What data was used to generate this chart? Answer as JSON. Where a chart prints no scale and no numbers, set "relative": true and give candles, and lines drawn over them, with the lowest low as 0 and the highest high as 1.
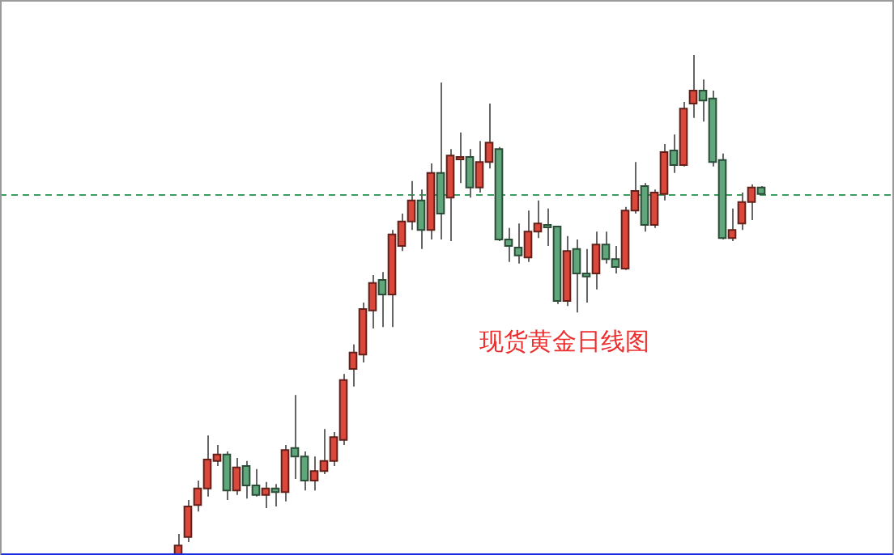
{
  "chart_data": {
    "type": "candlestick",
    "title": "现货黄金日线图",
    "relative": true,
    "categories": [
      null,
      null,
      null,
      null,
      null,
      null,
      null,
      null,
      null,
      null,
      null,
      null,
      null,
      null,
      null,
      null,
      null,
      null,
      null,
      null,
      null,
      null,
      null,
      null,
      null,
      null,
      null,
      null,
      null,
      null,
      null,
      null,
      null,
      null,
      null,
      null,
      null,
      null,
      null,
      null,
      null,
      null,
      null,
      null,
      null,
      null,
      null,
      null,
      null,
      null,
      null,
      null,
      null,
      null,
      null,
      null,
      null,
      null,
      null,
      null,
      null
    ],
    "ohlc": [
      [
        0,
        0.042,
        0,
        0.019
      ],
      [
        0.036,
        0.11,
        0.026,
        0.097
      ],
      [
        0.1,
        0.149,
        0.087,
        0.133
      ],
      [
        0.133,
        0.239,
        0.117,
        0.191
      ],
      [
        0.188,
        0.22,
        0.178,
        0.201
      ],
      [
        0.201,
        0.207,
        0.11,
        0.129
      ],
      [
        0.129,
        0.194,
        0.12,
        0.175
      ],
      [
        0.178,
        0.188,
        0.113,
        0.139
      ],
      [
        0.139,
        0.172,
        0.117,
        0.12
      ],
      [
        0.12,
        0.146,
        0.094,
        0.133
      ],
      [
        0.133,
        0.142,
        0.097,
        0.126
      ],
      [
        0.126,
        0.22,
        0.107,
        0.21
      ],
      [
        0.214,
        0.32,
        0.152,
        0.197
      ],
      [
        0.197,
        0.207,
        0.129,
        0.149
      ],
      [
        0.149,
        0.197,
        0.129,
        0.168
      ],
      [
        0.168,
        0.252,
        0.162,
        0.188
      ],
      [
        0.188,
        0.246,
        0.178,
        0.236
      ],
      [
        0.23,
        0.362,
        0.22,
        0.35
      ],
      [
        0.372,
        0.421,
        0.337,
        0.405
      ],
      [
        0.401,
        0.505,
        0.385,
        0.492
      ],
      [
        0.489,
        0.56,
        0.453,
        0.544
      ],
      [
        0.55,
        0.566,
        0.456,
        0.521
      ],
      [
        0.521,
        0.65,
        0.456,
        0.641
      ],
      [
        0.618,
        0.683,
        0.608,
        0.667
      ],
      [
        0.667,
        0.748,
        0.65,
        0.709
      ],
      [
        0.709,
        0.731,
        0.612,
        0.65
      ],
      [
        0.65,
        0.783,
        0.631,
        0.764
      ],
      [
        0.764,
        0.945,
        0.631,
        0.683
      ],
      [
        0.715,
        0.812,
        0.628,
        0.799
      ],
      [
        0.793,
        0.845,
        0.744,
        0.796
      ],
      [
        0.796,
        0.812,
        0.715,
        0.735
      ],
      [
        0.735,
        0.828,
        0.725,
        0.786
      ],
      [
        0.786,
        0.903,
        0.773,
        0.825
      ],
      [
        0.812,
        0.816,
        0.628,
        0.631
      ],
      [
        0.631,
        0.654,
        0.586,
        0.618
      ],
      [
        0.615,
        0.663,
        0.583,
        0.599
      ],
      [
        0.595,
        0.689,
        0.586,
        0.647
      ],
      [
        0.647,
        0.709,
        0.634,
        0.663
      ],
      [
        0.66,
        0.693,
        0.618,
        0.657
      ],
      [
        0.657,
        0.657,
        0.502,
        0.508
      ],
      [
        0.508,
        0.638,
        0.498,
        0.608
      ],
      [
        0.612,
        0.631,
        0.485,
        0.563
      ],
      [
        0.563,
        0.612,
        0.505,
        0.557
      ],
      [
        0.563,
        0.647,
        0.531,
        0.621
      ],
      [
        0.621,
        0.647,
        0.583,
        0.592
      ],
      [
        0.592,
        0.618,
        0.563,
        0.576
      ],
      [
        0.573,
        0.696,
        0.57,
        0.689
      ],
      [
        0.689,
        0.786,
        0.683,
        0.728
      ],
      [
        0.738,
        0.744,
        0.647,
        0.66
      ],
      [
        0.66,
        0.731,
        0.654,
        0.725
      ],
      [
        0.722,
        0.822,
        0.709,
        0.806
      ],
      [
        0.809,
        0.841,
        0.764,
        0.78
      ],
      [
        0.78,
        0.906,
        0.777,
        0.893
      ],
      [
        0.903,
        1,
        0.874,
        0.929
      ],
      [
        0.929,
        0.951,
        0.867,
        0.909
      ],
      [
        0.913,
        0.929,
        0.777,
        0.786
      ],
      [
        0.79,
        0.803,
        0.631,
        0.634
      ],
      [
        0.634,
        0.693,
        0.628,
        0.65
      ],
      [
        0.663,
        0.725,
        0.65,
        0.706
      ],
      [
        0.706,
        0.741,
        0.67,
        0.735
      ],
      [
        0.735,
        0.738,
        0.722,
        0.722
      ]
    ],
    "colors": [
      "#d9483b",
      "#d9483b",
      "#d9483b",
      "#d9483b",
      "#d9483b",
      "#5fa67a",
      "#d9483b",
      "#5fa67a",
      "#5fa67a",
      "#d9483b",
      "#5fa67a",
      "#d9483b",
      "#5fa67a",
      "#5fa67a",
      "#d9483b",
      "#d9483b",
      "#d9483b",
      "#d9483b",
      "#d9483b",
      "#d9483b",
      "#d9483b",
      "#5fa67a",
      "#d9483b",
      "#d9483b",
      "#d9483b",
      "#5fa67a",
      "#d9483b",
      "#5fa67a",
      "#d9483b",
      "#d9483b",
      "#5fa67a",
      "#d9483b",
      "#d9483b",
      "#5fa67a",
      "#5fa67a",
      "#5fa67a",
      "#d9483b",
      "#d9483b",
      "#5fa67a",
      "#5fa67a",
      "#d9483b",
      "#5fa67a",
      "#5fa67a",
      "#d9483b",
      "#5fa67a",
      "#5fa67a",
      "#d9483b",
      "#d9483b",
      "#5fa67a",
      "#d9483b",
      "#d9483b",
      "#5fa67a",
      "#d9483b",
      "#d9483b",
      "#5fa67a",
      "#5fa67a",
      "#5fa67a",
      "#d9483b",
      "#d9483b",
      "#d9483b",
      "#5fa67a"
    ],
    "ref_lines": [
      {
        "axis": "y",
        "value": 0.722,
        "color": "#3a9e5e",
        "line_style": "dashed"
      }
    ]
  }
}
